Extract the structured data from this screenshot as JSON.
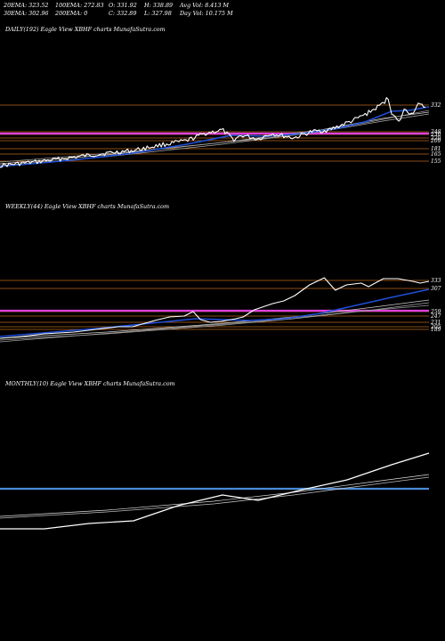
{
  "header": {
    "row1": [
      "20EMA: 323.52",
      "100EMA: 272.83",
      "O: 331.92",
      "H: 338.89",
      "Avg Vol: 8.413 M"
    ],
    "row2": [
      "30EMA: 302.96",
      "200EMA: 0",
      "C: 332.89",
      "L: 327.98",
      "Day Vol: 10.175 M"
    ]
  },
  "colors": {
    "price": "#ffffff",
    "ema_blue": "#1f4fd8",
    "level_line": "#b8651b",
    "magenta_line": "#e040e0",
    "monthly_ref": "#4a8ad8",
    "background": "#000000"
  },
  "chart_data": [
    {
      "type": "line",
      "panel": "daily",
      "title": "DAILY(192) Eagle   View  XBHF charts MunafaSutra.com",
      "levels": [
        "332",
        "248",
        "230",
        "220",
        "209",
        "181",
        "165",
        "155"
      ],
      "series": []
    },
    {
      "type": "line",
      "panel": "weekly",
      "title": "WEEKLY(44) Eagle   View  XBHF charts MunafaSutra.com",
      "levels": [
        "333",
        "307",
        "259",
        "247",
        "231",
        "205",
        "189"
      ],
      "series": []
    },
    {
      "type": "line",
      "panel": "monthly",
      "title": "MONTHLY(10) Eagle   View  XBHF charts MunafaSutra.com",
      "levels": [],
      "series": []
    }
  ]
}
